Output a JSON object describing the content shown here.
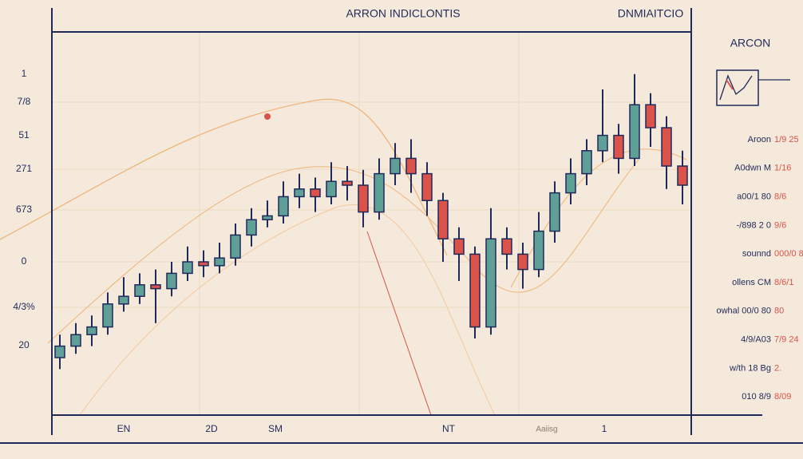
{
  "chart_data": {
    "type": "candlestick",
    "title": "ARRON INDICLONTIS",
    "subtitle": "DNMIAITCIO",
    "side_title": "ARCON",
    "ylim": [
      0,
      100
    ],
    "y_labels": [
      "1",
      "7/8",
      "51",
      "271",
      "673",
      "0",
      "4/3%",
      "20"
    ],
    "x_labels": [
      "EN",
      "2D",
      "SM",
      "NT",
      "Aaiisg",
      "1"
    ],
    "up_color": "#5f9f98",
    "down_color": "#d9534a",
    "wick_color": "#1f2a5a",
    "legend_rows": [
      {
        "text": "Aroon",
        "accent": "1/9 25"
      },
      {
        "text": "A0dwn M",
        "accent": "1/16"
      },
      {
        "text": "a00/1 80",
        "accent": "8/6"
      },
      {
        "text": "-/898 2 0",
        "accent": "9/6"
      },
      {
        "text": "sounnd",
        "accent": "000/0 8/8"
      },
      {
        "text": "ollens CM",
        "accent": "8/6/1"
      },
      {
        "text": "owhal 00/0 80",
        "accent": "80"
      },
      {
        "text": "4/9/A03",
        "accent": "7/9 24"
      },
      {
        "text": "w/th 18 Bg",
        "accent": "2."
      },
      {
        "text": "010 8/9",
        "accent": "8/09"
      }
    ],
    "candles": [
      [
        15,
        21,
        12,
        18
      ],
      [
        18,
        24,
        16,
        21
      ],
      [
        21,
        26,
        18,
        23
      ],
      [
        23,
        32,
        21,
        29
      ],
      [
        29,
        36,
        27,
        31
      ],
      [
        31,
        37,
        29,
        34
      ],
      [
        34,
        38,
        24,
        33
      ],
      [
        33,
        40,
        31,
        37
      ],
      [
        37,
        44,
        35,
        40
      ],
      [
        40,
        43,
        36,
        39
      ],
      [
        39,
        45,
        37,
        41
      ],
      [
        41,
        50,
        39,
        47
      ],
      [
        47,
        54,
        44,
        51
      ],
      [
        51,
        56,
        49,
        52
      ],
      [
        52,
        61,
        50,
        57
      ],
      [
        57,
        63,
        54,
        59
      ],
      [
        59,
        62,
        53,
        57
      ],
      [
        57,
        66,
        55,
        61
      ],
      [
        61,
        65,
        56,
        60
      ],
      [
        60,
        64,
        49,
        53
      ],
      [
        53,
        67,
        51,
        63
      ],
      [
        63,
        71,
        60,
        67
      ],
      [
        67,
        72,
        58,
        63
      ],
      [
        63,
        66,
        52,
        56
      ],
      [
        56,
        58,
        40,
        46
      ],
      [
        46,
        49,
        35,
        42
      ],
      [
        42,
        44,
        20,
        23
      ],
      [
        23,
        54,
        21,
        46
      ],
      [
        46,
        49,
        38,
        42
      ],
      [
        42,
        45,
        33,
        38
      ],
      [
        38,
        53,
        36,
        48
      ],
      [
        48,
        61,
        45,
        58
      ],
      [
        58,
        67,
        55,
        63
      ],
      [
        63,
        72,
        60,
        69
      ],
      [
        69,
        85,
        66,
        73
      ],
      [
        73,
        76,
        63,
        67
      ],
      [
        67,
        89,
        65,
        81
      ],
      [
        81,
        84,
        70,
        75
      ],
      [
        75,
        78,
        59,
        65
      ],
      [
        65,
        69,
        55,
        60
      ]
    ]
  }
}
